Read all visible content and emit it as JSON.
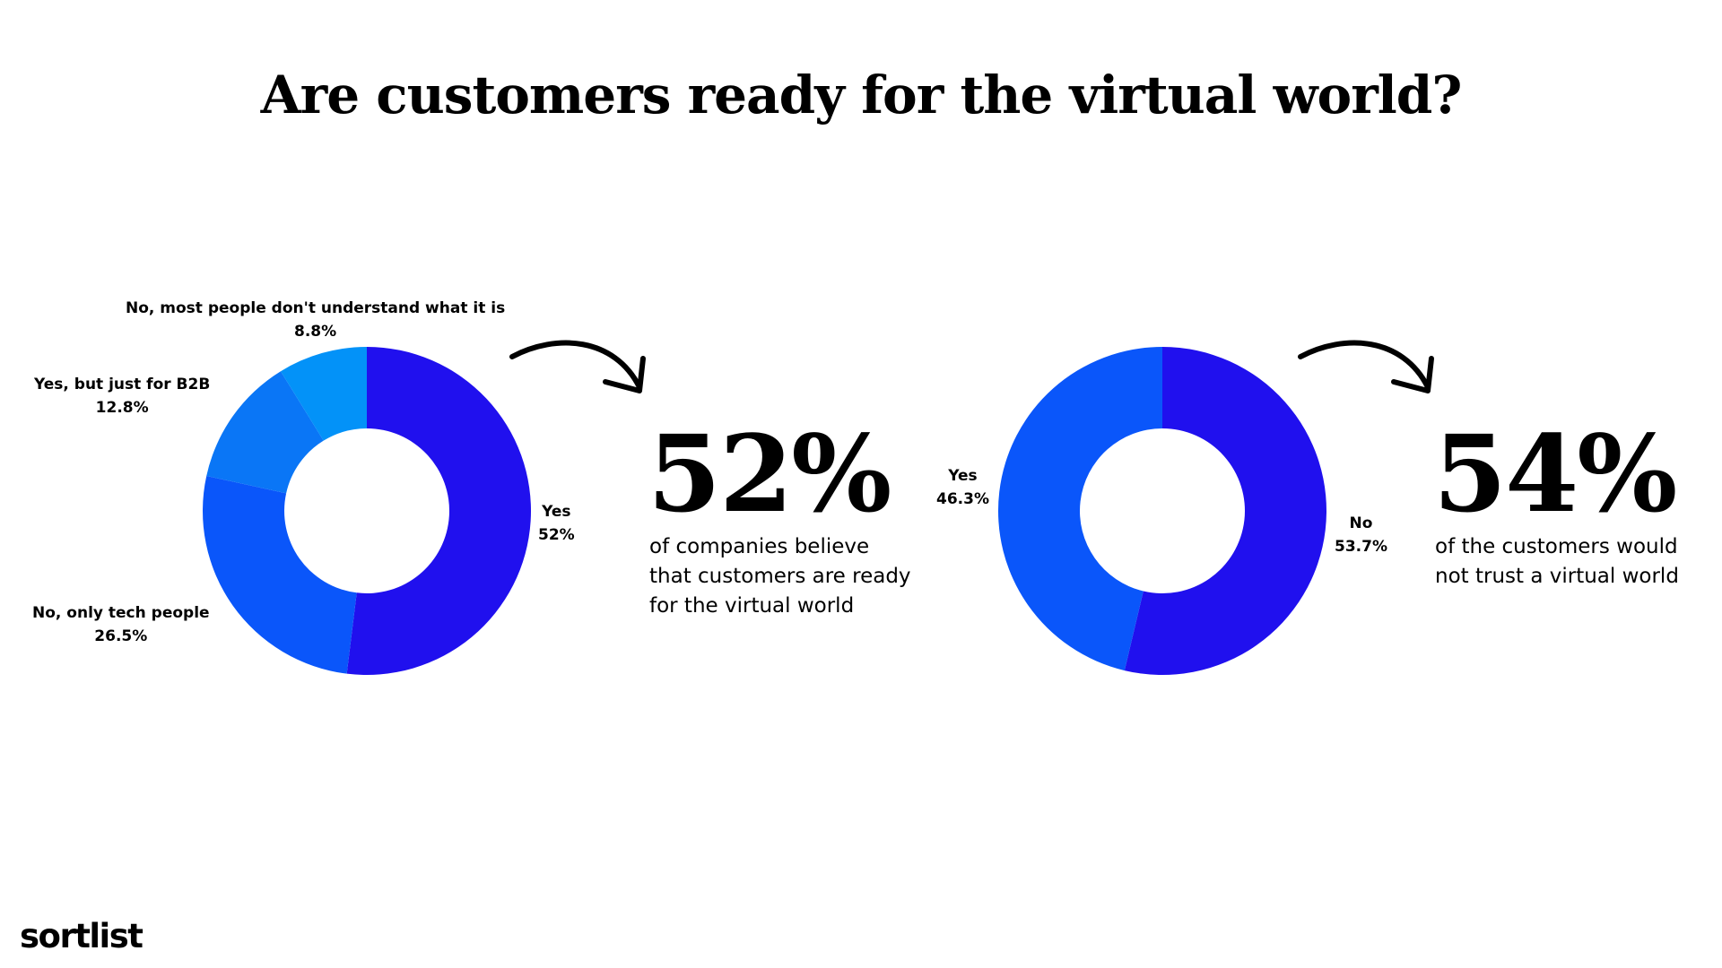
{
  "title": "Are customers ready for the virtual world?",
  "chart_data": [
    {
      "type": "pie",
      "variant": "donut",
      "slices": [
        {
          "label": "Yes",
          "value": 52,
          "value_label": "52%",
          "color": "#2010EE"
        },
        {
          "label": "No, only tech people",
          "value": 26.5,
          "value_label": "26.5%",
          "color": "#0A56FA"
        },
        {
          "label": "Yes, but just for B2B",
          "value": 12.8,
          "value_label": "12.8%",
          "color": "#0A76F6"
        },
        {
          "label": "No, most people don't understand what it is",
          "value": 8.8,
          "value_label": "8.8%",
          "color": "#0392F8"
        }
      ]
    },
    {
      "type": "pie",
      "variant": "donut",
      "slices": [
        {
          "label": "No",
          "value": 53.7,
          "value_label": "53.7%",
          "color": "#2010EE"
        },
        {
          "label": "Yes",
          "value": 46.3,
          "value_label": "46.3%",
          "color": "#0A56FA"
        }
      ]
    }
  ],
  "stats": [
    {
      "value": "52%",
      "caption_lines": [
        "of companies believe",
        "that customers are ready",
        "for the virtual world"
      ]
    },
    {
      "value": "54%",
      "caption_lines": [
        "of the customers would",
        "not trust a virtual world"
      ]
    }
  ],
  "brand": "sortlist"
}
